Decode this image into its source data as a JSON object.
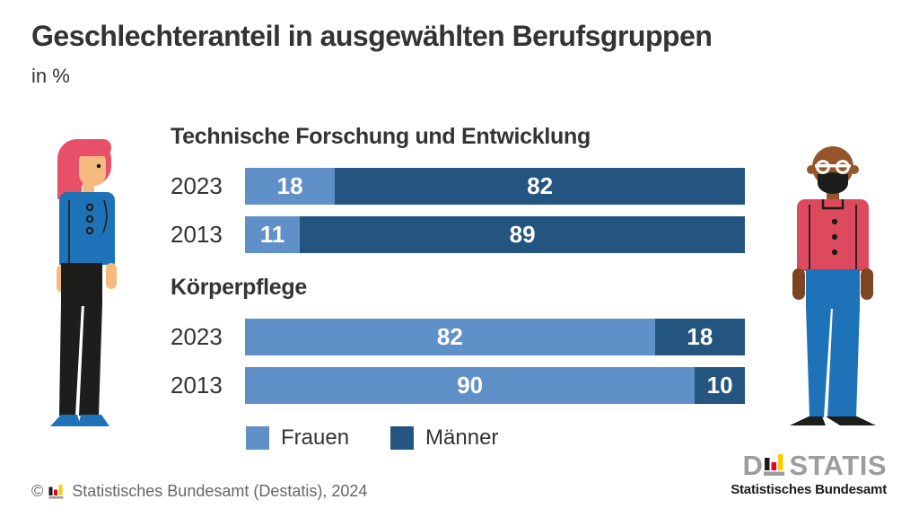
{
  "title": "Geschlechteranteil in ausgewählten Berufsgruppen",
  "subtitle": "in %",
  "colors": {
    "frauen_blue": "#6090c8",
    "maenner_blue": "#235580",
    "text_dark": "#333333",
    "footer_gray": "#666666",
    "logo_gray": "#9d9d9c",
    "brand_black": "#1d1d1b",
    "brand_red": "#e60028",
    "brand_gold": "#ffcc00"
  },
  "chart_data": {
    "type": "bar",
    "orientation": "horizontal",
    "stacked": true,
    "unit": "%",
    "xlim": [
      0,
      100
    ],
    "grid": false,
    "legend_position": "bottom",
    "series_names": [
      "Frauen",
      "Männer"
    ],
    "series_colors": [
      "#6090c8",
      "#235580"
    ],
    "groups": [
      {
        "category": "Technische Forschung und Entwicklung",
        "bars": [
          {
            "label": "2023",
            "values": [
              18,
              82
            ]
          },
          {
            "label": "2013",
            "values": [
              11,
              89
            ]
          }
        ]
      },
      {
        "category": "Körperpflege",
        "bars": [
          {
            "label": "2023",
            "values": [
              82,
              18
            ]
          },
          {
            "label": "2013",
            "values": [
              90,
              10
            ]
          }
        ]
      }
    ]
  },
  "legend": {
    "items": [
      {
        "label": "Frauen",
        "color": "#6090c8"
      },
      {
        "label": "Männer",
        "color": "#235580"
      }
    ]
  },
  "illustrations": {
    "left": "woman-figure",
    "right": "man-figure"
  },
  "footer": {
    "copyright_symbol": "©",
    "icon": "destatis-bars-icon",
    "text": "Statistisches Bundesamt (Destatis), 2024"
  },
  "logo": {
    "prefix": "D",
    "bars_icon": "destatis-bars-icon",
    "suffix": "STATIS",
    "caption": "Statistisches Bundesamt"
  }
}
